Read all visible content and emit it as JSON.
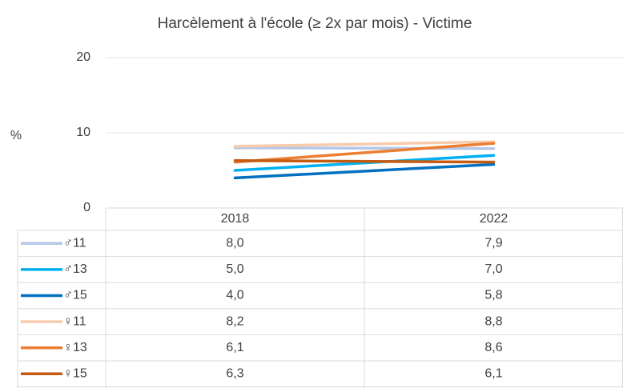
{
  "chart_data": {
    "type": "line",
    "title": "Harcèlement à l'école (≥ 2x par mois) - Victime",
    "y_label": "%",
    "categories": [
      "2018",
      "2022"
    ],
    "series": [
      {
        "name": "♂11",
        "color": "#b4c7e7",
        "values": [
          8.0,
          7.9
        ],
        "value_labels": [
          "8,0",
          "7,9"
        ]
      },
      {
        "name": "♂13",
        "color": "#00b0f0",
        "values": [
          5.0,
          7.0
        ],
        "value_labels": [
          "5,0",
          "7,0"
        ]
      },
      {
        "name": "♂15",
        "color": "#0070c0",
        "values": [
          4.0,
          5.8
        ],
        "value_labels": [
          "4,0",
          "5,8"
        ]
      },
      {
        "name": "♀11",
        "color": "#f8cbad",
        "values": [
          8.2,
          8.8
        ],
        "value_labels": [
          "8,2",
          "8,8"
        ]
      },
      {
        "name": "♀13",
        "color": "#ed7d31",
        "values": [
          6.1,
          8.6
        ],
        "value_labels": [
          "6,1",
          "8,6"
        ]
      },
      {
        "name": "♀15",
        "color": "#c55a11",
        "values": [
          6.3,
          6.1
        ],
        "value_labels": [
          "6,3",
          "6,1"
        ]
      }
    ],
    "ylim": [
      0,
      20
    ],
    "yticks": [
      0,
      10,
      20
    ],
    "grid": true
  }
}
